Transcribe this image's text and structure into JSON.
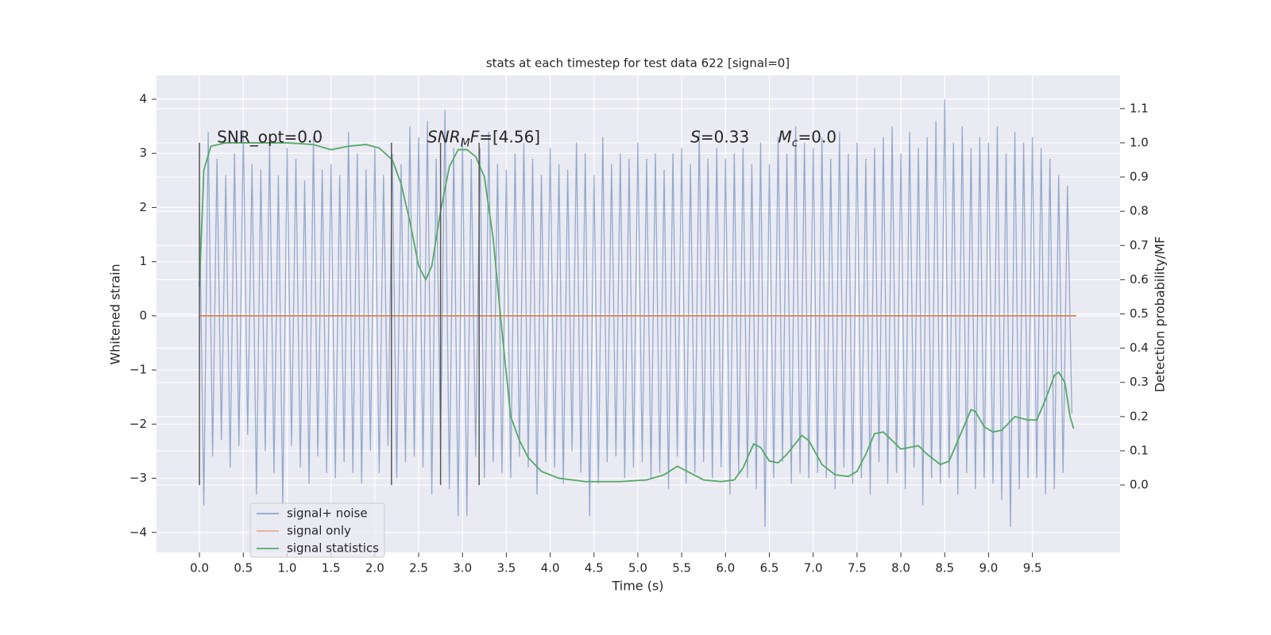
{
  "chart_data": {
    "type": "line",
    "title": "stats at each timestep for test data 622 [signal=0]",
    "xlabel": "Time (s)",
    "ylabel": "Whitened strain",
    "y2label": "Detection probability/MF",
    "xlim": [
      -0.49,
      10.5
    ],
    "ylim": [
      -4.37,
      4.44
    ],
    "y2lim": [
      -0.197,
      1.197
    ],
    "xticks": [
      {
        "value": 0,
        "label": "0.0"
      },
      0.5,
      {
        "value": 1,
        "label": "1.0"
      },
      1.5,
      {
        "value": 2,
        "label": "2.0"
      },
      2.5,
      {
        "value": 3,
        "label": "3.0"
      },
      3.5,
      {
        "value": 4,
        "label": "4.0"
      },
      4.5,
      {
        "value": 5,
        "label": "5.0"
      },
      5.5,
      {
        "value": 6,
        "label": "6.0"
      },
      6.5,
      {
        "value": 7,
        "label": "7.0"
      },
      7.5,
      {
        "value": 8,
        "label": "8.0"
      },
      8.5,
      {
        "value": 9,
        "label": "9.0"
      },
      9.5
    ],
    "yticks": [
      {
        "value": -4,
        "label": "−4"
      },
      {
        "value": -3,
        "label": "−3"
      },
      {
        "value": -2,
        "label": "−2"
      },
      {
        "value": -1,
        "label": "−1"
      },
      0,
      1,
      2,
      3,
      4
    ],
    "y2ticks": [
      {
        "value": 0,
        "label": "0.0"
      },
      0.1,
      0.2,
      0.3,
      0.4,
      0.5,
      0.6,
      0.7,
      0.8,
      0.9,
      {
        "value": 1,
        "label": "1.0"
      },
      1.1
    ],
    "grid": true,
    "legend": "lower left",
    "series": [
      {
        "name": "signal+ noise",
        "color": "#4c72b0",
        "x": [
          0,
          0.05,
          0.1,
          0.15,
          0.2,
          0.25,
          0.3,
          0.35,
          0.4,
          0.45,
          0.5,
          0.55,
          0.6,
          0.65,
          0.7,
          0.75,
          0.8,
          0.85,
          0.9,
          0.95,
          1,
          1.05,
          1.1,
          1.15,
          1.2,
          1.25,
          1.3,
          1.35,
          1.4,
          1.45,
          1.5,
          1.55,
          1.6,
          1.65,
          1.7,
          1.75,
          1.8,
          1.85,
          1.9,
          1.95,
          2,
          2.05,
          2.1,
          2.15,
          2.2,
          2.25,
          2.3,
          2.35,
          2.4,
          2.45,
          2.5,
          2.55,
          2.6,
          2.65,
          2.7,
          2.75,
          2.8,
          2.85,
          2.9,
          2.95,
          3,
          3.05,
          3.1,
          3.15,
          3.2,
          3.25,
          3.3,
          3.35,
          3.4,
          3.45,
          3.5,
          3.55,
          3.6,
          3.65,
          3.7,
          3.75,
          3.8,
          3.85,
          3.9,
          3.95,
          4,
          4.05,
          4.1,
          4.15,
          4.2,
          4.25,
          4.3,
          4.35,
          4.4,
          4.45,
          4.5,
          4.55,
          4.6,
          4.65,
          4.7,
          4.75,
          4.8,
          4.85,
          4.9,
          4.95,
          5,
          5.05,
          5.1,
          5.15,
          5.2,
          5.25,
          5.3,
          5.35,
          5.4,
          5.45,
          5.5,
          5.55,
          5.6,
          5.65,
          5.7,
          5.75,
          5.8,
          5.85,
          5.9,
          5.95,
          6,
          6.05,
          6.1,
          6.15,
          6.2,
          6.25,
          6.3,
          6.35,
          6.4,
          6.45,
          6.5,
          6.55,
          6.6,
          6.65,
          6.7,
          6.75,
          6.8,
          6.85,
          6.9,
          6.95,
          7,
          7.05,
          7.1,
          7.15,
          7.2,
          7.25,
          7.3,
          7.35,
          7.4,
          7.45,
          7.5,
          7.55,
          7.6,
          7.65,
          7.7,
          7.75,
          7.8,
          7.85,
          7.9,
          7.95,
          8,
          8.05,
          8.1,
          8.15,
          8.2,
          8.25,
          8.3,
          8.35,
          8.4,
          8.45,
          8.5,
          8.55,
          8.6,
          8.65,
          8.7,
          8.75,
          8.8,
          8.85,
          8.9,
          8.95,
          9,
          9.05,
          9.1,
          9.15,
          9.2,
          9.25,
          9.3,
          9.35,
          9.4,
          9.45,
          9.5,
          9.55,
          9.6,
          9.65,
          9.7,
          9.75,
          9.8,
          9.85,
          9.9,
          9.95
        ],
        "values": [
          2.1,
          -3.5,
          3.4,
          -2.6,
          2.9,
          -2.3,
          2.6,
          -2.8,
          3.0,
          -2.4,
          3.4,
          -2.2,
          2.8,
          -3.3,
          2.7,
          -2.5,
          3.2,
          -2.9,
          2.6,
          -3.5,
          3.1,
          -2.4,
          2.9,
          -2.8,
          2.5,
          -3.1,
          3.3,
          -2.6,
          2.7,
          -2.9,
          2.8,
          -3.0,
          2.6,
          -2.7,
          3.4,
          -2.9,
          3.0,
          -3.1,
          2.7,
          -2.5,
          3.1,
          -2.9,
          2.6,
          -2.4,
          3.0,
          -3.0,
          2.8,
          -2.7,
          3.5,
          -2.6,
          3.3,
          -2.8,
          3.6,
          -3.3,
          2.9,
          -2.5,
          3.8,
          -3.2,
          3.1,
          -3.7,
          3.3,
          -3.7,
          2.9,
          -2.6,
          3.1,
          -3.0,
          3.4,
          -2.7,
          2.8,
          -2.9,
          2.7,
          -3.0,
          3.0,
          -2.6,
          3.2,
          -2.8,
          2.9,
          -3.3,
          2.6,
          -2.7,
          3.1,
          -2.8,
          2.8,
          -3.1,
          2.7,
          -2.5,
          3.2,
          -2.9,
          3.0,
          -3.7,
          2.6,
          -3.1,
          3.3,
          -2.7,
          2.8,
          -2.6,
          3.0,
          -3.0,
          2.9,
          -2.8,
          3.2,
          -2.7,
          2.9,
          -3.0,
          3.0,
          -2.9,
          2.7,
          -3.2,
          3.0,
          -2.6,
          3.1,
          -3.1,
          2.8,
          -2.9,
          3.4,
          -2.7,
          2.9,
          -3.0,
          3.1,
          -2.8,
          2.9,
          -3.3,
          3.0,
          -2.9,
          3.1,
          -3.0,
          2.8,
          -3.2,
          3.2,
          -3.9,
          2.8,
          -3.0,
          3.3,
          -2.7,
          3.0,
          -3.1,
          3.5,
          -2.9,
          3.2,
          -3.0,
          3.1,
          -2.9,
          3.3,
          -3.0,
          2.9,
          -3.2,
          3.4,
          -2.8,
          3.0,
          -3.1,
          3.2,
          -3.0,
          2.9,
          -3.3,
          3.1,
          -2.7,
          3.3,
          -3.1,
          3.5,
          -2.9,
          3.0,
          -3.2,
          3.4,
          -2.8,
          3.1,
          -3.5,
          3.3,
          -3.0,
          3.6,
          -3.1,
          4.0,
          -3.0,
          3.2,
          -3.3,
          3.5,
          -2.9,
          3.1,
          -3.2,
          3.3,
          -3.0,
          3.2,
          -3.1,
          3.5,
          -3.4,
          3.0,
          -3.9,
          3.4,
          -3.2,
          3.2,
          -3.0,
          3.3,
          -3.0,
          3.1,
          -3.3,
          2.9,
          -3.2,
          2.6,
          -2.9,
          2.4,
          -1.8
        ]
      },
      {
        "name": "signal only",
        "color": "#dd8452",
        "x": [
          0,
          10
        ],
        "values": [
          0,
          0
        ]
      },
      {
        "name": "signal statistics",
        "color": "#55a868",
        "axis": "y2",
        "x": [
          0,
          0.05,
          0.13,
          0.3,
          0.6,
          1.0,
          1.3,
          1.5,
          1.7,
          1.9,
          2.05,
          2.2,
          2.3,
          2.4,
          2.5,
          2.58,
          2.65,
          2.75,
          2.85,
          2.95,
          3.05,
          3.15,
          3.25,
          3.35,
          3.45,
          3.55,
          3.65,
          3.75,
          3.9,
          4.1,
          4.4,
          4.8,
          5.1,
          5.3,
          5.45,
          5.6,
          5.75,
          5.95,
          6.1,
          6.2,
          6.32,
          6.4,
          6.5,
          6.6,
          6.7,
          6.87,
          6.95,
          7.1,
          7.25,
          7.4,
          7.5,
          7.6,
          7.7,
          7.8,
          7.9,
          8.0,
          8.1,
          8.2,
          8.3,
          8.45,
          8.55,
          8.7,
          8.8,
          8.85,
          8.95,
          9.05,
          9.15,
          9.3,
          9.45,
          9.55,
          9.65,
          9.75,
          9.8,
          9.87,
          9.93,
          9.97
        ],
        "values": [
          0.58,
          0.92,
          0.99,
          1.0,
          1.0,
          1.0,
          0.995,
          0.98,
          0.99,
          0.995,
          0.985,
          0.95,
          0.88,
          0.77,
          0.64,
          0.6,
          0.64,
          0.8,
          0.93,
          0.98,
          0.98,
          0.96,
          0.9,
          0.72,
          0.45,
          0.2,
          0.13,
          0.08,
          0.04,
          0.02,
          0.01,
          0.01,
          0.015,
          0.03,
          0.055,
          0.035,
          0.015,
          0.01,
          0.015,
          0.05,
          0.12,
          0.11,
          0.07,
          0.065,
          0.09,
          0.145,
          0.13,
          0.06,
          0.03,
          0.025,
          0.04,
          0.09,
          0.15,
          0.155,
          0.13,
          0.105,
          0.11,
          0.115,
          0.09,
          0.06,
          0.07,
          0.16,
          0.22,
          0.215,
          0.17,
          0.155,
          0.16,
          0.2,
          0.19,
          0.19,
          0.25,
          0.32,
          0.33,
          0.3,
          0.2,
          0.165
        ]
      }
    ],
    "vlines": {
      "x": [
        0,
        2.19,
        2.75,
        3.19
      ],
      "ymin": 0,
      "ymax": 1,
      "axis": "y2",
      "color": "#555555"
    },
    "annotations": [
      {
        "x": 0.2,
        "y": 3.2,
        "parts": [
          {
            "text": "SNR_opt=0.0"
          }
        ]
      },
      {
        "x": 2.6,
        "y": 3.2,
        "parts": [
          {
            "text": "SNR",
            "style": "italic"
          },
          {
            "text": "M",
            "style": "italic-sub"
          },
          {
            "text": "F",
            "style": "italic"
          },
          {
            "text": "=[4.56]"
          }
        ]
      },
      {
        "x": 5.6,
        "y": 3.2,
        "parts": [
          {
            "text": "S",
            "style": "italic"
          },
          {
            "text": "=0.33"
          }
        ]
      },
      {
        "x": 6.6,
        "y": 3.2,
        "parts": [
          {
            "text": "M",
            "style": "italic"
          },
          {
            "text": "c",
            "style": "italic-sub"
          },
          {
            "text": "=0.0"
          }
        ]
      }
    ]
  }
}
